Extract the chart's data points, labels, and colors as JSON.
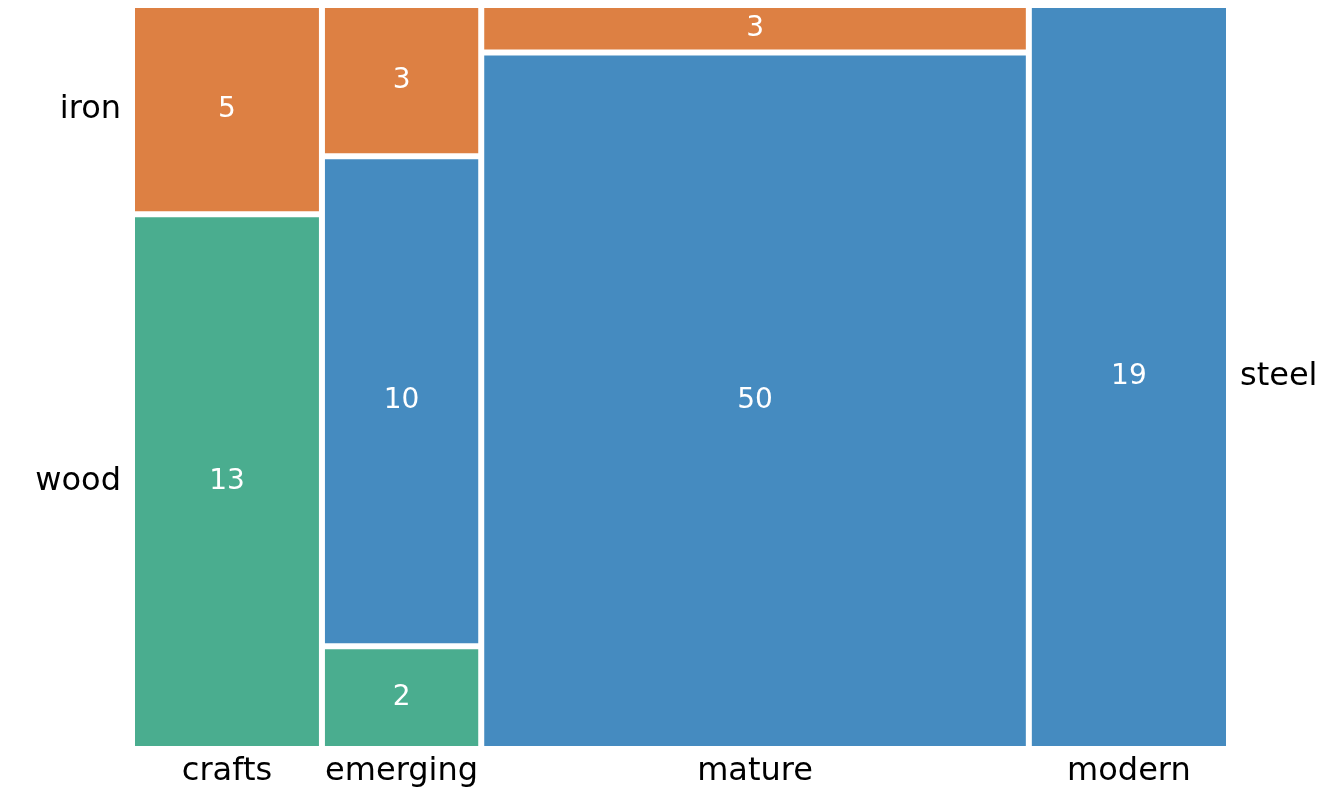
{
  "chart_data": {
    "type": "other",
    "categories": [
      "crafts",
      "emerging",
      "mature",
      "modern"
    ],
    "series": [
      {
        "name": "wood",
        "color": "#4aad8f",
        "values": [
          13,
          2,
          null,
          null
        ],
        "value_labels": [
          "13",
          "2",
          null,
          null
        ]
      },
      {
        "name": "steel",
        "color": "#458bc0",
        "values": [
          null,
          10,
          50,
          19
        ],
        "value_labels": [
          null,
          "10",
          "50",
          "19"
        ]
      },
      {
        "name": "iron",
        "color": "#dd8043",
        "values": [
          5,
          3,
          3,
          null
        ],
        "value_labels": [
          "5",
          "3",
          "3",
          null
        ]
      }
    ]
  }
}
